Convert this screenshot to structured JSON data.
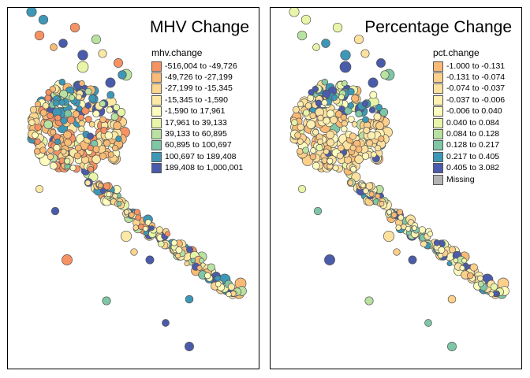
{
  "palette": {
    "outline": "#555555",
    "missing": "#b3b3b3"
  },
  "panels": [
    {
      "title": "MHV Change",
      "legend_title": "mhv.change",
      "legend": [
        {
          "label": "-516,004 to -49,726",
          "color": "#f79263"
        },
        {
          "label": "-49,726 to -27,199",
          "color": "#f9ba75"
        },
        {
          "label": "-27,199 to -15,345",
          "color": "#fcd68e"
        },
        {
          "label": "-15,345 to -1,590",
          "color": "#fde9a6"
        },
        {
          "label": "-1,590 to 17,961",
          "color": "#fefbbe"
        },
        {
          "label": "17,961 to 39,133",
          "color": "#e8f5a8"
        },
        {
          "label": "39,133 to 60,895",
          "color": "#b9e1a1"
        },
        {
          "label": "60,895 to 100,697",
          "color": "#7ec6a5"
        },
        {
          "label": "100,697 to 189,408",
          "color": "#3c98b6"
        },
        {
          "label": "189,408 to 1,000,001",
          "color": "#4a5bab"
        }
      ]
    },
    {
      "title": "Percentage Change",
      "legend_title": "pct.change",
      "legend": [
        {
          "label": "-1.000 to -0.131",
          "color": "#f9ba75"
        },
        {
          "label": "-0.131 to -0.074",
          "color": "#fcd08a"
        },
        {
          "label": "-0.074 to -0.037",
          "color": "#fde19f"
        },
        {
          "label": "-0.037 to -0.006",
          "color": "#fef0b1"
        },
        {
          "label": "-0.006 to 0.040",
          "color": "#fefbbe"
        },
        {
          "label": "0.040 to 0.084",
          "color": "#e8f5a8"
        },
        {
          "label": "0.084 to 0.128",
          "color": "#b9e1a1"
        },
        {
          "label": "0.128 to 0.217",
          "color": "#7ec6a5"
        },
        {
          "label": "0.217 to 0.405",
          "color": "#3c98b6"
        },
        {
          "label": "0.405 to 3.082",
          "color": "#4a5bab"
        },
        {
          "label": "Missing",
          "color": "#b3b3b3"
        }
      ]
    }
  ]
}
